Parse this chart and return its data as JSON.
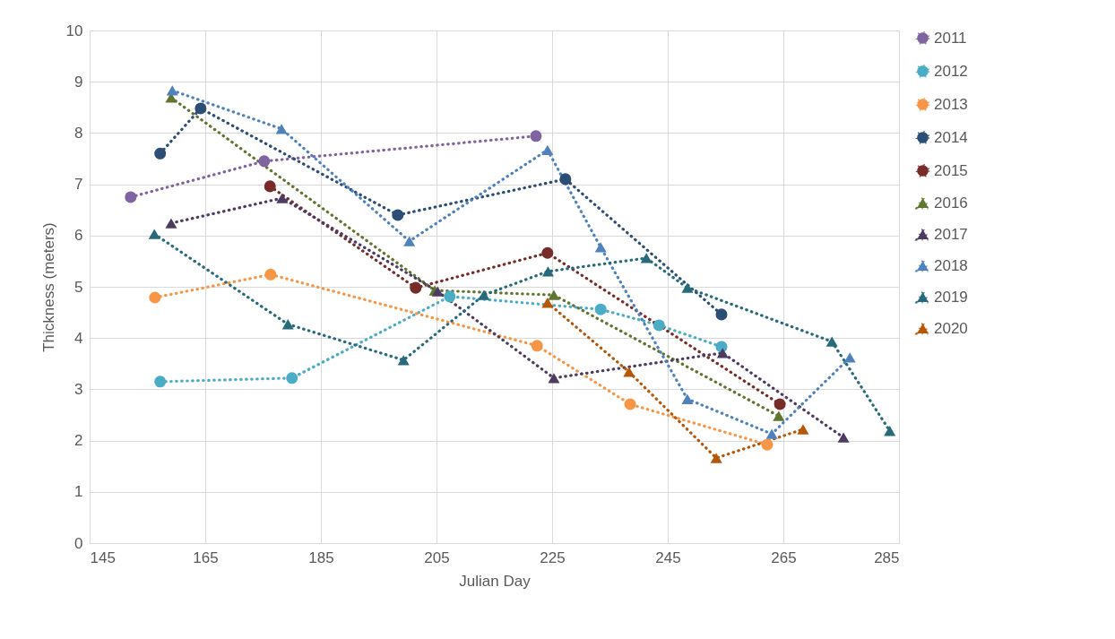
{
  "chart_data": {
    "type": "line",
    "xlabel": "Julian Day",
    "ylabel": "Thickness (meters)",
    "xlim": [
      145,
      285
    ],
    "xticks": [
      145,
      165,
      185,
      205,
      225,
      245,
      265,
      285
    ],
    "ylim": [
      0,
      10
    ],
    "yticks": [
      0,
      1,
      2,
      3,
      4,
      5,
      6,
      7,
      8,
      9,
      10
    ],
    "grid": true,
    "legend": "right",
    "line_style": "dotted",
    "series": [
      {
        "name": "2011",
        "color": "#8064a2",
        "marker": "circle",
        "x": [
          152.1,
          175.2,
          222.2
        ],
        "values": [
          6.75,
          7.45,
          7.94
        ]
      },
      {
        "name": "2012",
        "color": "#4bacc6",
        "marker": "circle",
        "x": [
          157.2,
          180.0,
          207.3,
          233.4,
          243.5,
          254.3
        ],
        "values": [
          3.15,
          3.22,
          4.81,
          4.56,
          4.25,
          3.83
        ]
      },
      {
        "name": "2013",
        "color": "#f79646",
        "marker": "circle",
        "x": [
          156.3,
          176.3,
          222.4,
          238.5,
          262.2
        ],
        "values": [
          4.79,
          5.24,
          3.85,
          2.71,
          1.92
        ]
      },
      {
        "name": "2014",
        "color": "#2c4d75",
        "marker": "circle",
        "x": [
          157.2,
          164.2,
          198.3,
          227.3,
          254.3
        ],
        "values": [
          7.6,
          8.48,
          6.4,
          7.1,
          4.46
        ]
      },
      {
        "name": "2015",
        "color": "#772c2a",
        "marker": "circle",
        "x": [
          176.2,
          201.4,
          224.2,
          264.4
        ],
        "values": [
          6.96,
          4.98,
          5.66,
          2.71
        ]
      },
      {
        "name": "2016",
        "color": "#5f7530",
        "marker": "triangle",
        "x": [
          159.1,
          204.7,
          225.3,
          264.2
        ],
        "values": [
          8.69,
          4.93,
          4.84,
          2.48
        ]
      },
      {
        "name": "2017",
        "color": "#4d3b62",
        "marker": "triangle",
        "x": [
          159.1,
          178.3,
          205.2,
          225.3,
          254.5,
          275.4
        ],
        "values": [
          6.24,
          6.73,
          4.91,
          3.22,
          3.71,
          2.06
        ]
      },
      {
        "name": "2018",
        "color": "#4f81bd",
        "marker": "triangle",
        "x": [
          159.3,
          178.2,
          200.3,
          224.2,
          233.4,
          248.4,
          263.0,
          276.5
        ],
        "values": [
          8.83,
          8.08,
          5.89,
          7.67,
          5.77,
          2.81,
          2.13,
          3.62
        ]
      },
      {
        "name": "2019",
        "color": "#276a7c",
        "marker": "triangle",
        "x": [
          156.2,
          179.3,
          199.3,
          213.2,
          224.3,
          241.3,
          248.4,
          273.4,
          283.4
        ],
        "values": [
          6.03,
          4.27,
          3.57,
          4.84,
          5.3,
          5.56,
          4.98,
          3.93,
          2.19
        ]
      },
      {
        "name": "2020",
        "color": "#b65708",
        "marker": "triangle",
        "x": [
          224.2,
          238.3,
          253.4,
          268.4
        ],
        "values": [
          4.69,
          3.34,
          1.66,
          2.22
        ]
      }
    ]
  }
}
